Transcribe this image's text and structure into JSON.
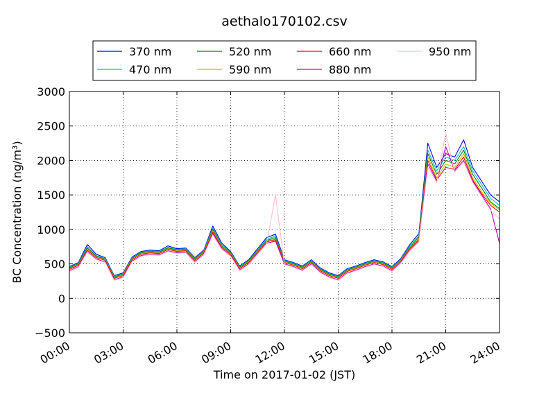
{
  "chart_data": {
    "type": "line",
    "title": "aethalo170102.csv",
    "xlabel": "Time on 2017-01-02 (JST)",
    "ylabel": "BC Concentration (ng/m³)",
    "xlim": [
      0,
      24
    ],
    "ylim": [
      -500,
      3000
    ],
    "grid": true,
    "legend_placement": "top",
    "xticks": [
      {
        "value": 0,
        "label": "00:00"
      },
      {
        "value": 3,
        "label": "03:00"
      },
      {
        "value": 6,
        "label": "06:00"
      },
      {
        "value": 9,
        "label": "09:00"
      },
      {
        "value": 12,
        "label": "12:00"
      },
      {
        "value": 15,
        "label": "15:00"
      },
      {
        "value": 18,
        "label": "18:00"
      },
      {
        "value": 21,
        "label": "21:00"
      },
      {
        "value": 24,
        "label": "24:00"
      }
    ],
    "yticks": [
      {
        "value": -500,
        "label": "−500"
      },
      {
        "value": 0,
        "label": "0"
      },
      {
        "value": 500,
        "label": "500"
      },
      {
        "value": 1000,
        "label": "1000"
      },
      {
        "value": 1500,
        "label": "1500"
      },
      {
        "value": 2000,
        "label": "2000"
      },
      {
        "value": 2500,
        "label": "2500"
      },
      {
        "value": 3000,
        "label": "3000"
      }
    ],
    "x": [
      0,
      0.5,
      1,
      1.5,
      2,
      2.5,
      3,
      3.5,
      4,
      4.5,
      5,
      5.5,
      6,
      6.5,
      7,
      7.5,
      8,
      8.5,
      9,
      9.5,
      10,
      10.5,
      11,
      11.5,
      12,
      12.5,
      13,
      13.5,
      14,
      14.5,
      15,
      15.5,
      16,
      16.5,
      17,
      17.5,
      18,
      18.5,
      19,
      19.5,
      20,
      20.5,
      21,
      21.5,
      22,
      22.5,
      23,
      23.5,
      24
    ],
    "series": [
      {
        "name": "370 nm",
        "color": "#0000ff",
        "values": [
          460,
          520,
          780,
          640,
          590,
          330,
          370,
          600,
          680,
          700,
          690,
          760,
          720,
          730,
          590,
          700,
          1050,
          800,
          680,
          470,
          560,
          720,
          880,
          930,
          560,
          520,
          470,
          560,
          440,
          370,
          330,
          430,
          470,
          520,
          560,
          530,
          460,
          580,
          780,
          940,
          2250,
          1900,
          2100,
          2050,
          2300,
          1900,
          1700,
          1500,
          1400
        ]
      },
      {
        "name": "470 nm",
        "color": "#00bfbf",
        "values": [
          450,
          510,
          750,
          620,
          580,
          320,
          360,
          590,
          670,
          690,
          680,
          740,
          710,
          720,
          580,
          690,
          1020,
          780,
          670,
          460,
          550,
          700,
          860,
          900,
          550,
          510,
          460,
          550,
          430,
          360,
          320,
          420,
          460,
          510,
          550,
          520,
          450,
          570,
          760,
          910,
          2150,
          1850,
          2050,
          2000,
          2200,
          1850,
          1650,
          1450,
          1350
        ]
      },
      {
        "name": "520 nm",
        "color": "#008000",
        "values": [
          440,
          500,
          730,
          610,
          570,
          310,
          350,
          580,
          660,
          680,
          670,
          730,
          700,
          710,
          570,
          680,
          1000,
          760,
          660,
          450,
          540,
          690,
          840,
          880,
          540,
          500,
          450,
          540,
          420,
          350,
          310,
          410,
          450,
          500,
          540,
          510,
          440,
          560,
          740,
          890,
          2100,
          1800,
          2000,
          1950,
          2150,
          1800,
          1600,
          1400,
          1300
        ]
      },
      {
        "name": "590 nm",
        "color": "#bfbf00",
        "values": [
          430,
          490,
          710,
          600,
          560,
          300,
          340,
          570,
          650,
          670,
          660,
          720,
          690,
          700,
          560,
          670,
          980,
          750,
          650,
          440,
          530,
          680,
          830,
          860,
          530,
          490,
          440,
          530,
          410,
          340,
          300,
          400,
          440,
          490,
          530,
          500,
          430,
          550,
          730,
          870,
          2050,
          1750,
          1950,
          1900,
          2100,
          1750,
          1550,
          1380,
          1280
        ]
      },
      {
        "name": "660 nm",
        "color": "#ff0000",
        "values": [
          420,
          480,
          700,
          590,
          550,
          290,
          330,
          560,
          640,
          660,
          650,
          710,
          680,
          690,
          550,
          660,
          960,
          740,
          640,
          430,
          520,
          670,
          820,
          850,
          520,
          480,
          430,
          520,
          400,
          330,
          290,
          390,
          430,
          480,
          520,
          490,
          420,
          540,
          720,
          850,
          2000,
          1720,
          1900,
          1870,
          2050,
          1720,
          1520,
          1350,
          1250
        ]
      },
      {
        "name": "880 nm",
        "color": "#bf00bf",
        "values": [
          400,
          460,
          680,
          570,
          530,
          270,
          310,
          540,
          620,
          640,
          630,
          690,
          660,
          670,
          530,
          640,
          940,
          720,
          620,
          410,
          500,
          650,
          800,
          830,
          500,
          460,
          410,
          500,
          380,
          310,
          270,
          370,
          410,
          460,
          500,
          470,
          400,
          520,
          700,
          830,
          1950,
          1700,
          2200,
          1850,
          2000,
          1700,
          1500,
          1300,
          800
        ]
      },
      {
        "name": "950 nm",
        "color": "#ffc0cb",
        "values": [
          390,
          450,
          670,
          560,
          520,
          260,
          300,
          530,
          610,
          630,
          620,
          680,
          650,
          660,
          520,
          630,
          920,
          710,
          610,
          400,
          490,
          640,
          790,
          1500,
          490,
          450,
          400,
          490,
          370,
          300,
          260,
          360,
          400,
          450,
          490,
          460,
          390,
          510,
          690,
          820,
          1900,
          1680,
          2400,
          1830,
          1980,
          1680,
          1480,
          1280,
          1150
        ]
      }
    ]
  }
}
